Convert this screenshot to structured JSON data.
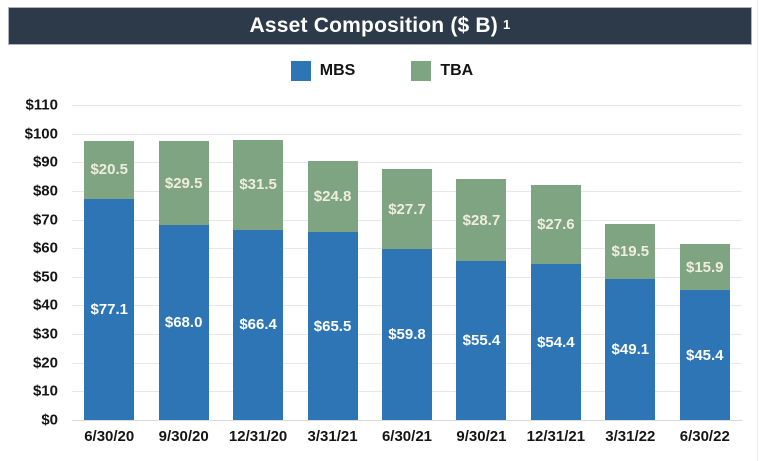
{
  "header": {
    "title": "Asset Composition ($ B)",
    "superscript": "1"
  },
  "legend": [
    {
      "label": "MBS",
      "color": "#2E75B6"
    },
    {
      "label": "TBA",
      "color": "#7FA481"
    }
  ],
  "chart_data": {
    "type": "bar",
    "stacked": true,
    "title": "Asset Composition ($ B)",
    "categories": [
      "6/30/20",
      "9/30/20",
      "12/31/20",
      "3/31/21",
      "6/30/21",
      "9/30/21",
      "12/31/21",
      "3/31/22",
      "6/30/22"
    ],
    "series": [
      {
        "name": "MBS",
        "color": "#2E75B6",
        "label_color": "#FDFDFB",
        "values": [
          77.1,
          68.0,
          66.4,
          65.5,
          59.8,
          55.4,
          54.4,
          49.1,
          45.4
        ]
      },
      {
        "name": "TBA",
        "color": "#7FA481",
        "label_color": "#EFEDDF",
        "values": [
          20.5,
          29.5,
          31.5,
          24.8,
          27.7,
          28.7,
          27.6,
          19.5,
          15.9
        ]
      }
    ],
    "xlabel": "",
    "ylabel": "",
    "ylim": [
      0,
      110
    ],
    "ytick_step": 10,
    "ytick_prefix": "$",
    "value_prefix": "$",
    "grid": true,
    "legend_position": "top"
  }
}
